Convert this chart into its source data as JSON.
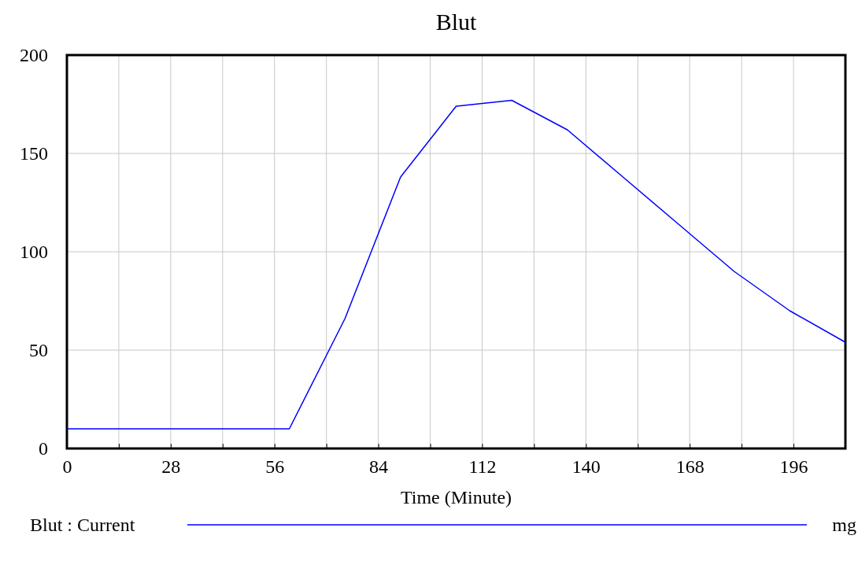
{
  "chart_data": {
    "type": "line",
    "title": "Blut",
    "xlabel": "Time (Minute)",
    "x": [
      0,
      60,
      75,
      90,
      105,
      120,
      135,
      150,
      165,
      180,
      195,
      210
    ],
    "series": [
      {
        "name": "Blut : Current",
        "color": "#0000ff",
        "values": [
          10,
          10,
          66,
          138,
          174,
          177,
          162,
          138,
          114,
          90,
          70,
          54
        ]
      }
    ],
    "xlim": [
      0,
      210
    ],
    "xticks": [
      0,
      {
        "value": 14,
        "label": null
      },
      28,
      {
        "value": 42,
        "label": null
      },
      56,
      {
        "value": 70,
        "label": null
      },
      84,
      {
        "value": 98,
        "label": null
      },
      112,
      {
        "value": 126,
        "label": null
      },
      140,
      {
        "value": 154,
        "label": null
      },
      168,
      {
        "value": 182,
        "label": null
      },
      196
    ],
    "ylim": [
      0,
      200
    ],
    "yticks": [
      0,
      50,
      100,
      150,
      200
    ],
    "grid": true,
    "legend": "bottom",
    "annotations": [
      "mg"
    ]
  }
}
